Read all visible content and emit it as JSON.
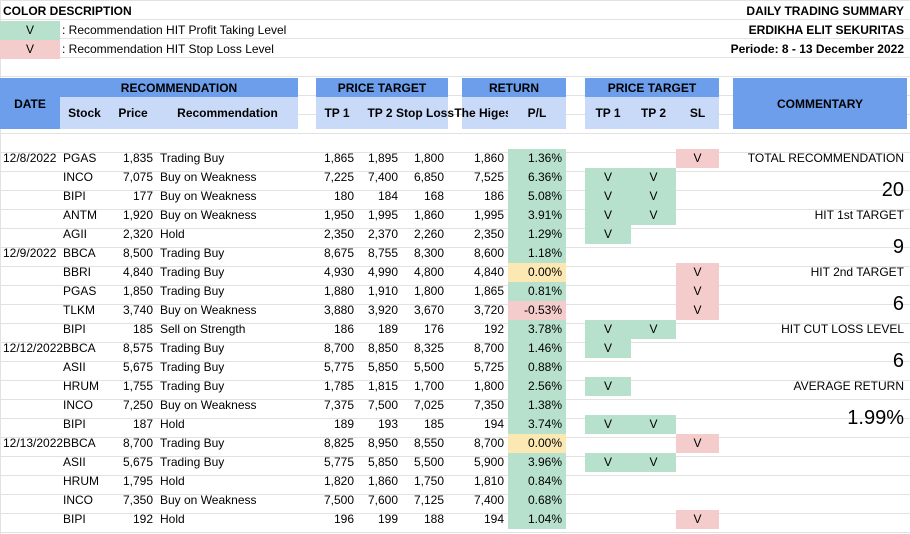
{
  "legend": {
    "title": "COLOR DESCRIPTION",
    "items": [
      {
        "mark": "V",
        "text": ": Recommendation HIT Profit Taking Level",
        "color": "#b7e1cd"
      },
      {
        "mark": "V",
        "text": ": Recommendation HIT Stop Loss Level",
        "color": "#f4cccc"
      }
    ]
  },
  "report": {
    "title": "DAILY TRADING SUMMARY",
    "company": "ERDIKHA ELIT SEKURITAS",
    "period": "Periode: 8 - 13 December 2022"
  },
  "headers": {
    "date": "DATE",
    "recommendation": "RECOMMENDATION",
    "stock": "Stock",
    "price": "Price",
    "rec": "Recommendation",
    "price_target": "PRICE TARGET",
    "tp1": "TP 1",
    "tp2": "TP 2",
    "stop_loss": "Stop Loss",
    "return": "RETURN",
    "the_highest": "The Higest",
    "pl": "P/L",
    "price_target2": "PRICE TARGET",
    "hit_tp1": "TP 1",
    "hit_tp2": "TP 2",
    "sl": "SL",
    "commentary": "COMMENTARY"
  },
  "rows": [
    {
      "date": "12/8/2022",
      "stock": "PGAS",
      "price": "1,835",
      "rec": "Trading Buy",
      "tp1": "1,865",
      "tp2": "1,895",
      "sl": "1,800",
      "high": "1,860",
      "pl": "1.36%",
      "plc": "green",
      "h1": "",
      "h2": "",
      "hs": "V"
    },
    {
      "date": "",
      "stock": "INCO",
      "price": "7,075",
      "rec": "Buy on Weakness",
      "tp1": "7,225",
      "tp2": "7,400",
      "sl": "6,850",
      "high": "7,525",
      "pl": "6.36%",
      "plc": "green",
      "h1": "V",
      "h2": "V",
      "hs": ""
    },
    {
      "date": "",
      "stock": "BIPI",
      "price": "177",
      "rec": "Buy on Weakness",
      "tp1": "180",
      "tp2": "184",
      "sl": "168",
      "high": "186",
      "pl": "5.08%",
      "plc": "green",
      "h1": "V",
      "h2": "V",
      "hs": ""
    },
    {
      "date": "",
      "stock": "ANTM",
      "price": "1,920",
      "rec": "Buy on Weakness",
      "tp1": "1,950",
      "tp2": "1,995",
      "sl": "1,860",
      "high": "1,995",
      "pl": "3.91%",
      "plc": "green",
      "h1": "V",
      "h2": "V",
      "hs": ""
    },
    {
      "date": "",
      "stock": "AGII",
      "price": "2,320",
      "rec": "Hold",
      "tp1": "2,350",
      "tp2": "2,370",
      "sl": "2,260",
      "high": "2,350",
      "pl": "1.29%",
      "plc": "green",
      "h1": "V",
      "h2": "",
      "hs": ""
    },
    {
      "date": "12/9/2022",
      "stock": "BBCA",
      "price": "8,500",
      "rec": "Trading Buy",
      "tp1": "8,675",
      "tp2": "8,755",
      "sl": "8,300",
      "high": "8,600",
      "pl": "1.18%",
      "plc": "green",
      "h1": "",
      "h2": "",
      "hs": ""
    },
    {
      "date": "",
      "stock": "BBRI",
      "price": "4,840",
      "rec": "Trading Buy",
      "tp1": "4,930",
      "tp2": "4,990",
      "sl": "4,800",
      "high": "4,840",
      "pl": "0.00%",
      "plc": "yellow",
      "h1": "",
      "h2": "",
      "hs": "V"
    },
    {
      "date": "",
      "stock": "PGAS",
      "price": "1,850",
      "rec": "Trading Buy",
      "tp1": "1,880",
      "tp2": "1,910",
      "sl": "1,800",
      "high": "1,865",
      "pl": "0.81%",
      "plc": "green",
      "h1": "",
      "h2": "",
      "hs": "V"
    },
    {
      "date": "",
      "stock": "TLKM",
      "price": "3,740",
      "rec": "Buy on Weakness",
      "tp1": "3,880",
      "tp2": "3,920",
      "sl": "3,670",
      "high": "3,720",
      "pl": "-0.53%",
      "plc": "red",
      "h1": "",
      "h2": "",
      "hs": "V"
    },
    {
      "date": "",
      "stock": "BIPI",
      "price": "185",
      "rec": "Sell on Strength",
      "tp1": "186",
      "tp2": "189",
      "sl": "176",
      "high": "192",
      "pl": "3.78%",
      "plc": "green",
      "h1": "V",
      "h2": "V",
      "hs": ""
    },
    {
      "date": "12/12/2022",
      "stock": "BBCA",
      "price": "8,575",
      "rec": "Trading Buy",
      "tp1": "8,700",
      "tp2": "8,850",
      "sl": "8,325",
      "high": "8,700",
      "pl": "1.46%",
      "plc": "green",
      "h1": "V",
      "h2": "",
      "hs": ""
    },
    {
      "date": "",
      "stock": "ASII",
      "price": "5,675",
      "rec": "Trading Buy",
      "tp1": "5,775",
      "tp2": "5,850",
      "sl": "5,500",
      "high": "5,725",
      "pl": "0.88%",
      "plc": "green",
      "h1": "",
      "h2": "",
      "hs": ""
    },
    {
      "date": "",
      "stock": "HRUM",
      "price": "1,755",
      "rec": "Trading Buy",
      "tp1": "1,785",
      "tp2": "1,815",
      "sl": "1,700",
      "high": "1,800",
      "pl": "2.56%",
      "plc": "green",
      "h1": "V",
      "h2": "",
      "hs": ""
    },
    {
      "date": "",
      "stock": "INCO",
      "price": "7,250",
      "rec": "Buy on Weakness",
      "tp1": "7,375",
      "tp2": "7,500",
      "sl": "7,025",
      "high": "7,350",
      "pl": "1.38%",
      "plc": "green",
      "h1": "",
      "h2": "",
      "hs": ""
    },
    {
      "date": "",
      "stock": "BIPI",
      "price": "187",
      "rec": "Hold",
      "tp1": "189",
      "tp2": "193",
      "sl": "185",
      "high": "194",
      "pl": "3.74%",
      "plc": "green",
      "h1": "V",
      "h2": "V",
      "hs": ""
    },
    {
      "date": "12/13/2022",
      "stock": "BBCA",
      "price": "8,700",
      "rec": "Trading Buy",
      "tp1": "8,825",
      "tp2": "8,950",
      "sl": "8,550",
      "high": "8,700",
      "pl": "0.00%",
      "plc": "yellow",
      "h1": "",
      "h2": "",
      "hs": "V"
    },
    {
      "date": "",
      "stock": "ASII",
      "price": "5,675",
      "rec": "Trading Buy",
      "tp1": "5,775",
      "tp2": "5,850",
      "sl": "5,500",
      "high": "5,900",
      "pl": "3.96%",
      "plc": "green",
      "h1": "V",
      "h2": "V",
      "hs": ""
    },
    {
      "date": "",
      "stock": "HRUM",
      "price": "1,795",
      "rec": "Hold",
      "tp1": "1,820",
      "tp2": "1,860",
      "sl": "1,750",
      "high": "1,810",
      "pl": "0.84%",
      "plc": "green",
      "h1": "",
      "h2": "",
      "hs": ""
    },
    {
      "date": "",
      "stock": "INCO",
      "price": "7,350",
      "rec": "Buy on Weakness",
      "tp1": "7,500",
      "tp2": "7,600",
      "sl": "7,125",
      "high": "7,400",
      "pl": "0.68%",
      "plc": "green",
      "h1": "",
      "h2": "",
      "hs": ""
    },
    {
      "date": "",
      "stock": "BIPI",
      "price": "192",
      "rec": "Hold",
      "tp1": "196",
      "tp2": "199",
      "sl": "188",
      "high": "194",
      "pl": "1.04%",
      "plc": "green",
      "h1": "",
      "h2": "",
      "hs": "V"
    }
  ],
  "commentary": {
    "total_label": "TOTAL RECOMMENDATION",
    "total_value": "20",
    "hit1_label": "HIT 1st TARGET",
    "hit1_value": "9",
    "hit2_label": "HIT 2nd TARGET",
    "hit2_value": "6",
    "cut_label": "HIT CUT LOSS LEVEL",
    "cut_value": "6",
    "avg_label": "AVERAGE RETURN",
    "avg_value": "1.99%"
  },
  "colors": {
    "header": "#6d9eeb",
    "subheader": "#c9daf8",
    "green": "#b7e1cd",
    "red": "#f4cccc",
    "yellow": "#fce8b2"
  }
}
